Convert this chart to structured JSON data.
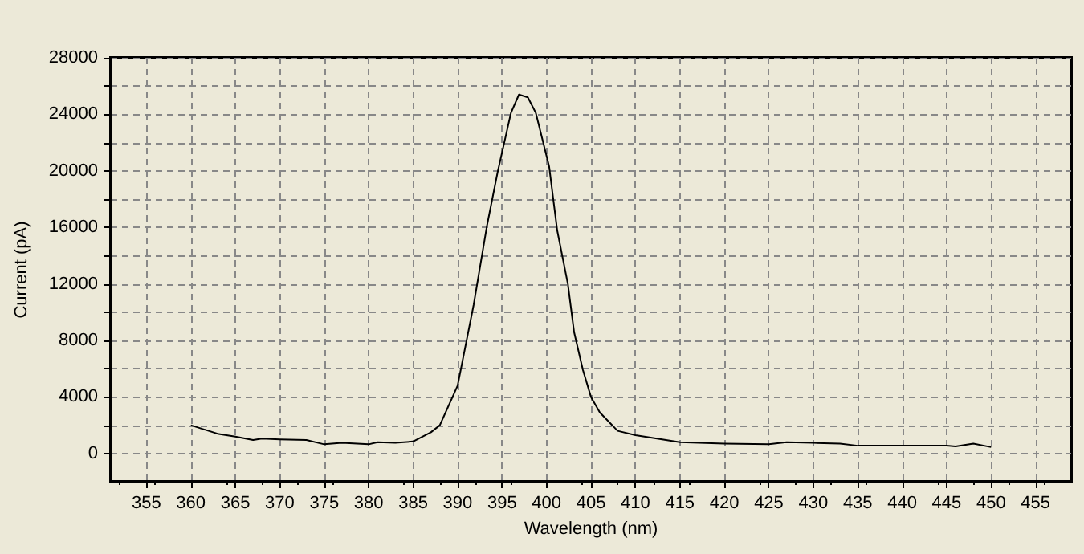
{
  "chart_data": {
    "type": "line",
    "xlabel": "Wavelength (nm)",
    "ylabel": "Current (pA)",
    "xlim": [
      351,
      459
    ],
    "xticks": [
      355,
      360,
      365,
      370,
      375,
      380,
      385,
      390,
      395,
      400,
      405,
      410,
      415,
      420,
      425,
      430,
      435,
      440,
      445,
      450,
      455
    ],
    "ylim": [
      -2000,
      28000
    ],
    "yticks": [
      0,
      {
        "value": 2000,
        "label": null
      },
      4000,
      {
        "value": 6000,
        "label": null
      },
      8000,
      {
        "value": 10000,
        "label": null
      },
      12000,
      {
        "value": 14000,
        "label": null
      },
      16000,
      {
        "value": 18000,
        "label": null
      },
      20000,
      {
        "value": 22000,
        "label": null
      },
      24000,
      {
        "value": 26000,
        "label": null
      },
      28000
    ],
    "grid": true,
    "marker": "none",
    "line_style": "solid",
    "series": [
      {
        "color": "#000000",
        "x": [
          360,
          361,
          363,
          365,
          367,
          368,
          370,
          373,
          375,
          377,
          380,
          381,
          383,
          385,
          387,
          388,
          390,
          391.8,
          393.3,
          394.5,
          396,
          396.9,
          397.9,
          398.8,
          400.3,
          401.2,
          402.4,
          403.1,
          404.1,
          405,
          406,
          408,
          410,
          413,
          415,
          420,
          425,
          427,
          430,
          433,
          435,
          440,
          445,
          446,
          448,
          450
        ],
        "values": [
          2000,
          1800,
          1400,
          1200,
          950,
          1050,
          1000,
          950,
          650,
          750,
          650,
          800,
          750,
          850,
          1500,
          2000,
          4800,
          10500,
          16100,
          19900,
          24100,
          25400,
          25200,
          24100,
          20300,
          15800,
          12000,
          8600,
          5900,
          4000,
          2900,
          1600,
          1300,
          1000,
          800,
          700,
          650,
          800,
          750,
          700,
          550,
          550,
          550,
          500,
          700,
          450
        ]
      }
    ]
  }
}
